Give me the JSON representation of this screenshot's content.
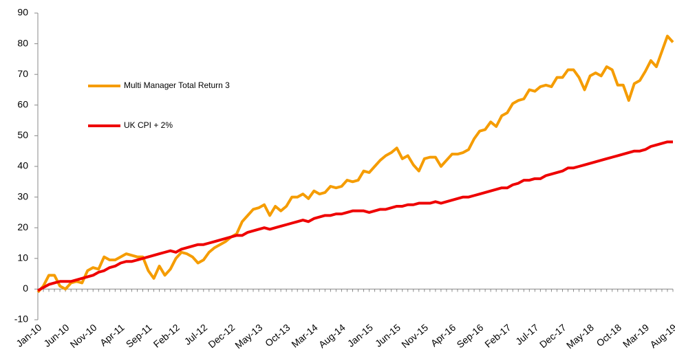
{
  "chart_data": {
    "type": "line",
    "categories": [
      "Jan-10",
      null,
      null,
      null,
      null,
      "Jun-10",
      null,
      null,
      null,
      null,
      "Nov-10",
      null,
      null,
      null,
      null,
      "Apr-11",
      null,
      null,
      null,
      null,
      "Sep-11",
      null,
      null,
      null,
      null,
      "Feb-12",
      null,
      null,
      null,
      null,
      "Jul-12",
      null,
      null,
      null,
      null,
      "Dec-12",
      null,
      null,
      null,
      null,
      "May-13",
      null,
      null,
      null,
      null,
      "Oct-13",
      null,
      null,
      null,
      null,
      "Mar-14",
      null,
      null,
      null,
      null,
      "Aug-14",
      null,
      null,
      null,
      null,
      "Jan-15",
      null,
      null,
      null,
      null,
      "Jun-15",
      null,
      null,
      null,
      null,
      "Nov-15",
      null,
      null,
      null,
      null,
      "Apr-16",
      null,
      null,
      null,
      null,
      "Sep-16",
      null,
      null,
      null,
      null,
      "Feb-17",
      null,
      null,
      null,
      null,
      "Jul-17",
      null,
      null,
      null,
      null,
      "Dec-17",
      null,
      null,
      null,
      null,
      "May-18",
      null,
      null,
      null,
      null,
      "Oct-18",
      null,
      null,
      null,
      null,
      "Mar-19",
      null,
      null,
      null,
      null,
      "Aug-19"
    ],
    "series": [
      {
        "name": "Multi Manager Total Return 3",
        "color": "#f59c00",
        "values": [
          -1,
          1,
          4.5,
          4.5,
          1,
          0,
          2,
          2.5,
          2,
          6,
          7,
          6.5,
          10.5,
          9.5,
          9.5,
          10.5,
          11.5,
          11,
          10.5,
          10.5,
          6,
          3.5,
          7.5,
          4.5,
          6.5,
          10,
          12,
          11.5,
          10.5,
          8.5,
          9.5,
          12,
          13.5,
          14.5,
          15.5,
          17,
          18,
          22,
          24,
          26,
          26.5,
          27.5,
          24,
          27,
          25.5,
          27,
          30,
          30,
          31,
          29.5,
          32,
          31,
          31.5,
          33.5,
          33,
          33.5,
          35.5,
          35,
          35.5,
          38.5,
          38,
          40,
          42,
          43.5,
          44.5,
          46,
          42.5,
          43.5,
          40.5,
          38.5,
          42.5,
          43,
          43,
          40,
          42,
          44,
          44,
          44.5,
          45.5,
          49,
          51.5,
          52,
          54.5,
          53,
          56.5,
          57.5,
          60.5,
          61.5,
          62,
          65,
          64.5,
          66,
          66.5,
          66,
          69,
          69,
          71.5,
          71.5,
          69,
          65,
          69.5,
          70.5,
          69.5,
          72.5,
          71.5,
          66.5,
          66.5,
          61.5,
          67,
          68,
          71,
          74.5,
          72.5,
          77.5,
          82.5,
          80.5
        ]
      },
      {
        "name": "UK CPI + 2%",
        "color": "#ee0000",
        "values": [
          -0.5,
          0.5,
          1.5,
          2,
          2.5,
          2.5,
          2.5,
          3,
          3.5,
          4,
          4.5,
          5.5,
          6,
          7,
          7.5,
          8.5,
          9,
          9,
          9.5,
          10,
          10.5,
          11,
          11.5,
          12,
          12.5,
          12,
          13,
          13.5,
          14,
          14.5,
          14.5,
          15,
          15.5,
          16,
          16.5,
          17,
          17.5,
          17.5,
          18.5,
          19,
          19.5,
          20,
          19.5,
          20,
          20.5,
          21,
          21.5,
          22,
          22.5,
          22,
          23,
          23.5,
          24,
          24,
          24.5,
          24.5,
          25,
          25.5,
          25.5,
          25.5,
          25,
          25.5,
          26,
          26,
          26.5,
          27,
          27,
          27.5,
          27.5,
          28,
          28,
          28,
          28.5,
          28,
          28.5,
          29,
          29.5,
          30,
          30,
          30.5,
          31,
          31.5,
          32,
          32.5,
          33,
          33,
          34,
          34.5,
          35.5,
          35.5,
          36,
          36,
          37,
          37.5,
          38,
          38.5,
          39.5,
          39.5,
          40,
          40.5,
          41,
          41.5,
          42,
          42.5,
          43,
          43.5,
          44,
          44.5,
          45,
          45,
          45.5,
          46.5,
          47,
          47.5,
          48,
          48
        ]
      }
    ],
    "ylim": [
      -10,
      90
    ],
    "yticks": [
      -10,
      0,
      10,
      20,
      30,
      40,
      50,
      60,
      70,
      80,
      90
    ]
  }
}
